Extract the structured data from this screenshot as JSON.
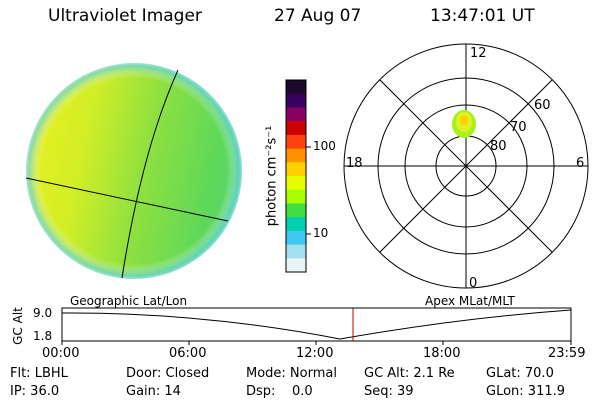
{
  "header": {
    "instrument": "Ultraviolet Imager",
    "date": "27 Aug 07",
    "time": "13:47:01 UT"
  },
  "colorbar": {
    "unit_label": "photon cm⁻²s⁻¹",
    "tick_100": "100",
    "tick_10": "10",
    "colors": [
      "#1a0a2e",
      "#3a0060",
      "#880060",
      "#cc0000",
      "#ff4010",
      "#ff9000",
      "#ffd000",
      "#e6ff00",
      "#a8ff00",
      "#40e040",
      "#00d0b0",
      "#40c8f0",
      "#a0e0f0",
      "#e6f4f6"
    ]
  },
  "polar": {
    "label_12": "12",
    "label_18": "18",
    "label_6": "6",
    "label_0": "0",
    "label_60": "60",
    "label_70": "70",
    "label_80": "80"
  },
  "timeline": {
    "left_label": "Geographic Lat/Lon",
    "right_label": "Apex MLat/MLT",
    "axis_label": "GC Alt",
    "y_top": "9.0",
    "y_bottom": "1.8",
    "ticks": [
      "00:00",
      "06:00",
      "12:00",
      "18:00",
      "23:59"
    ],
    "current_marker_color": "#cc0000"
  },
  "status": {
    "flt": "Flt: LBHL",
    "door": "Door: Closed",
    "mode": "Mode: Normal",
    "gc_alt": "GC Alt: 2.1 Re",
    "glat": "GLat: 70.0",
    "ip": "IP: 36.0",
    "gain": "Gain: 14",
    "dsp": "Dsp:    0.0",
    "seq": "Seq: 39",
    "glon": "GLon: 311.9"
  }
}
